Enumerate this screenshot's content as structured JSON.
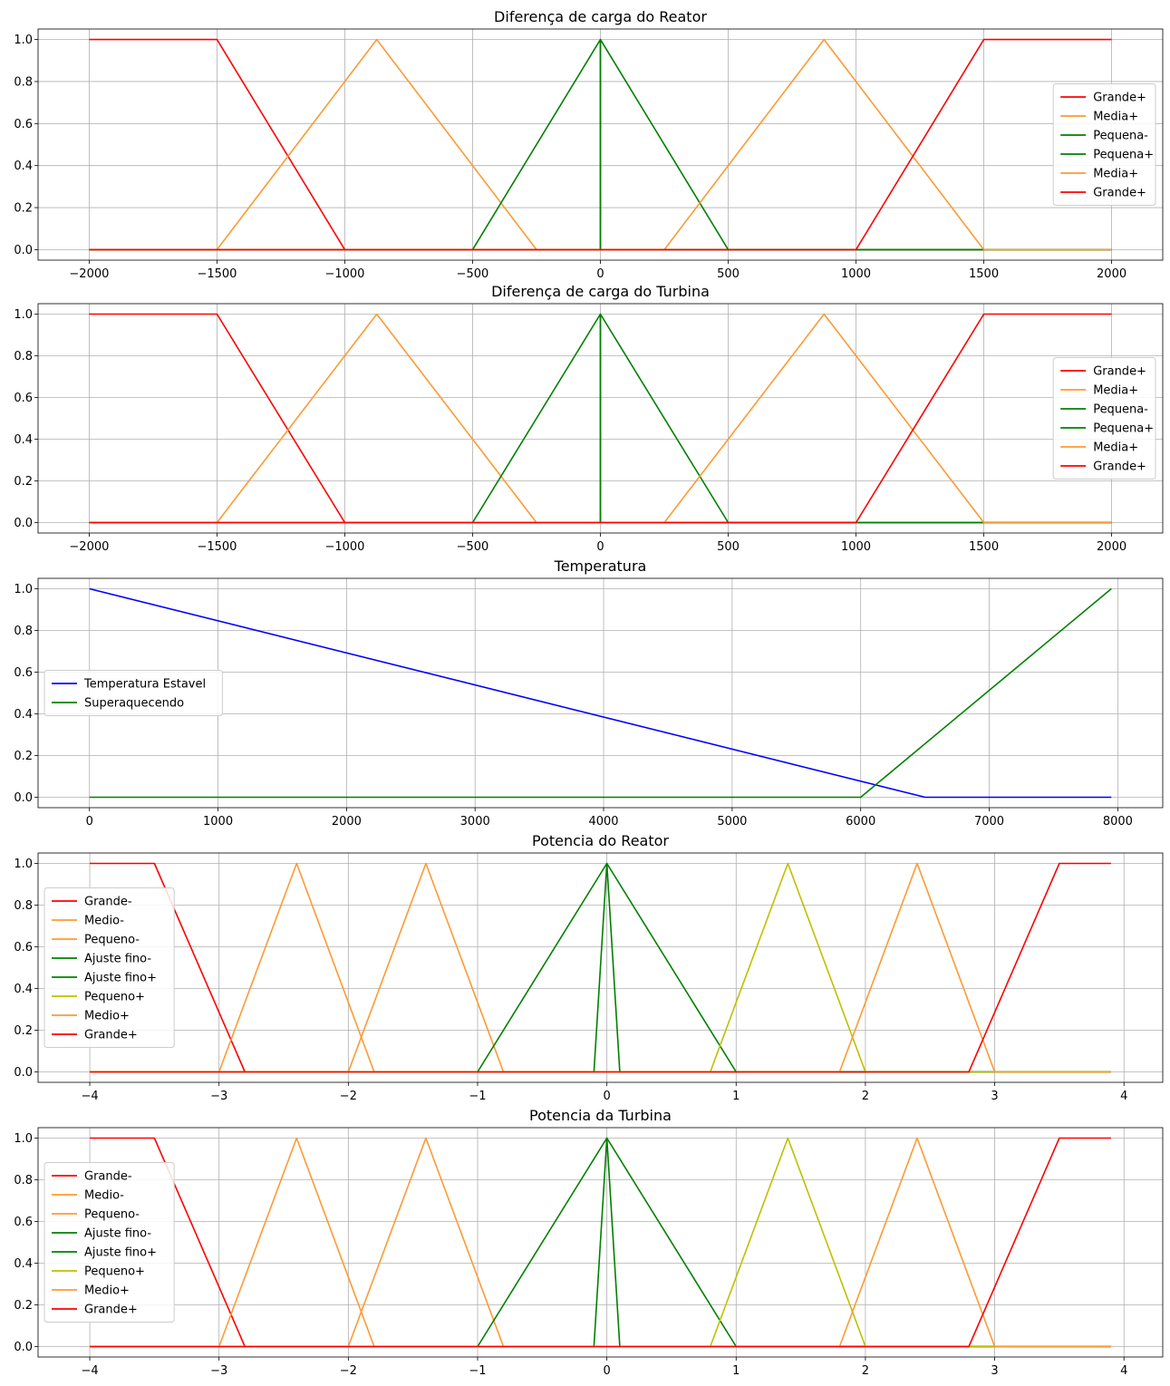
{
  "chart_data": [
    {
      "type": "line",
      "title": "Diferença de carga do Reator",
      "xlabel": "",
      "ylabel": "",
      "xlim": [
        -2200,
        2200
      ],
      "ylim": [
        -0.05,
        1.05
      ],
      "xticks": [
        -2000,
        -1500,
        -1000,
        -500,
        0,
        500,
        1000,
        1500,
        2000
      ],
      "xtick_labels": [
        "−2000",
        "−1500",
        "−1000",
        "−500",
        "0",
        "500",
        "1000",
        "1500",
        "2000"
      ],
      "yticks": [
        0.0,
        0.2,
        0.4,
        0.6,
        0.8,
        1.0
      ],
      "ytick_labels": [
        "0.0",
        "0.2",
        "0.4",
        "0.6",
        "0.8",
        "1.0"
      ],
      "grid": true,
      "legend_position": "right",
      "series": [
        {
          "name": "Grande+",
          "color": "#ff0000",
          "x": [
            -2000,
            -1500,
            -1000,
            2000
          ],
          "y": [
            1,
            1,
            0,
            0
          ]
        },
        {
          "name": "Media+",
          "color": "#ff9933",
          "x": [
            -2000,
            -1500,
            -875,
            -250,
            2000
          ],
          "y": [
            0,
            0,
            1,
            0,
            0
          ]
        },
        {
          "name": "Pequena-",
          "color": "#008000",
          "x": [
            -2000,
            -500,
            0,
            0,
            2000
          ],
          "y": [
            0,
            0,
            1,
            0,
            0
          ]
        },
        {
          "name": "Pequena+",
          "color": "#008000",
          "x": [
            -2000,
            0,
            0,
            500,
            2000
          ],
          "y": [
            0,
            0,
            1,
            0,
            0
          ]
        },
        {
          "name": "Media+",
          "color": "#ff9933",
          "x": [
            -2000,
            250,
            875,
            1500,
            2000
          ],
          "y": [
            0,
            0,
            1,
            0,
            0
          ]
        },
        {
          "name": "Grande+",
          "color": "#ff0000",
          "x": [
            -2000,
            1000,
            1500,
            2000
          ],
          "y": [
            0,
            0,
            1,
            1
          ]
        }
      ]
    },
    {
      "type": "line",
      "title": "Diferença de carga do Turbina",
      "xlabel": "",
      "ylabel": "",
      "xlim": [
        -2200,
        2200
      ],
      "ylim": [
        -0.05,
        1.05
      ],
      "xticks": [
        -2000,
        -1500,
        -1000,
        -500,
        0,
        500,
        1000,
        1500,
        2000
      ],
      "xtick_labels": [
        "−2000",
        "−1500",
        "−1000",
        "−500",
        "0",
        "500",
        "1000",
        "1500",
        "2000"
      ],
      "yticks": [
        0.0,
        0.2,
        0.4,
        0.6,
        0.8,
        1.0
      ],
      "ytick_labels": [
        "0.0",
        "0.2",
        "0.4",
        "0.6",
        "0.8",
        "1.0"
      ],
      "grid": true,
      "legend_position": "right",
      "series": [
        {
          "name": "Grande+",
          "color": "#ff0000",
          "x": [
            -2000,
            -1500,
            -1000,
            2000
          ],
          "y": [
            1,
            1,
            0,
            0
          ]
        },
        {
          "name": "Media+",
          "color": "#ff9933",
          "x": [
            -2000,
            -1500,
            -875,
            -250,
            2000
          ],
          "y": [
            0,
            0,
            1,
            0,
            0
          ]
        },
        {
          "name": "Pequena-",
          "color": "#008000",
          "x": [
            -2000,
            -500,
            0,
            0,
            2000
          ],
          "y": [
            0,
            0,
            1,
            0,
            0
          ]
        },
        {
          "name": "Pequena+",
          "color": "#008000",
          "x": [
            -2000,
            0,
            0,
            500,
            2000
          ],
          "y": [
            0,
            0,
            1,
            0,
            0
          ]
        },
        {
          "name": "Media+",
          "color": "#ff9933",
          "x": [
            -2000,
            250,
            875,
            1500,
            2000
          ],
          "y": [
            0,
            0,
            1,
            0,
            0
          ]
        },
        {
          "name": "Grande+",
          "color": "#ff0000",
          "x": [
            -2000,
            1000,
            1500,
            2000
          ],
          "y": [
            0,
            0,
            1,
            1
          ]
        }
      ]
    },
    {
      "type": "line",
      "title": "Temperatura",
      "xlabel": "",
      "ylabel": "",
      "xlim": [
        -400,
        8350
      ],
      "ylim": [
        -0.05,
        1.05
      ],
      "xticks": [
        0,
        1000,
        2000,
        3000,
        4000,
        5000,
        6000,
        7000,
        8000
      ],
      "xtick_labels": [
        "0",
        "1000",
        "2000",
        "3000",
        "4000",
        "5000",
        "6000",
        "7000",
        "8000"
      ],
      "yticks": [
        0.0,
        0.2,
        0.4,
        0.6,
        0.8,
        1.0
      ],
      "ytick_labels": [
        "0.0",
        "0.2",
        "0.4",
        "0.6",
        "0.8",
        "1.0"
      ],
      "grid": true,
      "legend_position": "center-left",
      "series": [
        {
          "name": "Temperatura Estavel",
          "color": "#0000ff",
          "x": [
            0,
            6500,
            7950
          ],
          "y": [
            1,
            0,
            0
          ]
        },
        {
          "name": "Superaquecendo",
          "color": "#008000",
          "x": [
            0,
            6000,
            7950
          ],
          "y": [
            0,
            0,
            1
          ]
        }
      ]
    },
    {
      "type": "line",
      "title": "Potencia do Reator",
      "xlabel": "",
      "ylabel": "",
      "xlim": [
        -4.4,
        4.3
      ],
      "ylim": [
        -0.05,
        1.05
      ],
      "xticks": [
        -4,
        -3,
        -2,
        -1,
        0,
        1,
        2,
        3,
        4
      ],
      "xtick_labels": [
        "−4",
        "−3",
        "−2",
        "−1",
        "0",
        "1",
        "2",
        "3",
        "4"
      ],
      "yticks": [
        0.0,
        0.2,
        0.4,
        0.6,
        0.8,
        1.0
      ],
      "ytick_labels": [
        "0.0",
        "0.2",
        "0.4",
        "0.6",
        "0.8",
        "1.0"
      ],
      "grid": true,
      "legend_position": "center-left",
      "series": [
        {
          "name": "Grande-",
          "color": "#ff0000",
          "x": [
            -4,
            -3.5,
            -2.8,
            3.9
          ],
          "y": [
            1,
            1,
            0,
            0
          ]
        },
        {
          "name": "Medio-",
          "color": "#ff9933",
          "x": [
            -4,
            -3,
            -2.4,
            -1.8,
            3.9
          ],
          "y": [
            0,
            0,
            1,
            0,
            0
          ]
        },
        {
          "name": "Pequeno-",
          "color": "#ff9933",
          "x": [
            -4,
            -2,
            -1.4,
            -0.8,
            3.9
          ],
          "y": [
            0,
            0,
            1,
            0,
            0
          ]
        },
        {
          "name": "Ajuste fino-",
          "color": "#008000",
          "x": [
            -4,
            -1,
            0,
            0.1,
            3.9
          ],
          "y": [
            0,
            0,
            1,
            0,
            0
          ]
        },
        {
          "name": "Ajuste fino+",
          "color": "#008000",
          "x": [
            -4,
            -0.1,
            0,
            1,
            3.9
          ],
          "y": [
            0,
            0,
            1,
            0,
            0
          ]
        },
        {
          "name": "Pequeno+",
          "color": "#bfbf00",
          "x": [
            -4,
            0.8,
            1.4,
            2,
            3.9
          ],
          "y": [
            0,
            0,
            1,
            0,
            0
          ]
        },
        {
          "name": "Medio+",
          "color": "#ff9933",
          "x": [
            -4,
            1.8,
            2.4,
            3,
            3.9
          ],
          "y": [
            0,
            0,
            1,
            0,
            0
          ]
        },
        {
          "name": "Grande+",
          "color": "#ff0000",
          "x": [
            -4,
            2.8,
            3.5,
            3.9
          ],
          "y": [
            0,
            0,
            1,
            1
          ]
        }
      ]
    },
    {
      "type": "line",
      "title": "Potencia da Turbina",
      "xlabel": "",
      "ylabel": "",
      "xlim": [
        -4.4,
        4.3
      ],
      "ylim": [
        -0.05,
        1.05
      ],
      "xticks": [
        -4,
        -3,
        -2,
        -1,
        0,
        1,
        2,
        3,
        4
      ],
      "xtick_labels": [
        "−4",
        "−3",
        "−2",
        "−1",
        "0",
        "1",
        "2",
        "3",
        "4"
      ],
      "yticks": [
        0.0,
        0.2,
        0.4,
        0.6,
        0.8,
        1.0
      ],
      "ytick_labels": [
        "0.0",
        "0.2",
        "0.4",
        "0.6",
        "0.8",
        "1.0"
      ],
      "grid": true,
      "legend_position": "center-left",
      "series": [
        {
          "name": "Grande-",
          "color": "#ff0000",
          "x": [
            -4,
            -3.5,
            -2.8,
            3.9
          ],
          "y": [
            1,
            1,
            0,
            0
          ]
        },
        {
          "name": "Medio-",
          "color": "#ff9933",
          "x": [
            -4,
            -3,
            -2.4,
            -1.8,
            3.9
          ],
          "y": [
            0,
            0,
            1,
            0,
            0
          ]
        },
        {
          "name": "Pequeno-",
          "color": "#ff9933",
          "x": [
            -4,
            -2,
            -1.4,
            -0.8,
            3.9
          ],
          "y": [
            0,
            0,
            1,
            0,
            0
          ]
        },
        {
          "name": "Ajuste fino-",
          "color": "#008000",
          "x": [
            -4,
            -1,
            0,
            0.1,
            3.9
          ],
          "y": [
            0,
            0,
            1,
            0,
            0
          ]
        },
        {
          "name": "Ajuste fino+",
          "color": "#008000",
          "x": [
            -4,
            -0.1,
            0,
            1,
            3.9
          ],
          "y": [
            0,
            0,
            1,
            0,
            0
          ]
        },
        {
          "name": "Pequeno+",
          "color": "#bfbf00",
          "x": [
            -4,
            0.8,
            1.4,
            2,
            3.9
          ],
          "y": [
            0,
            0,
            1,
            0,
            0
          ]
        },
        {
          "name": "Medio+",
          "color": "#ff9933",
          "x": [
            -4,
            1.8,
            2.4,
            3,
            3.9
          ],
          "y": [
            0,
            0,
            1,
            0,
            0
          ]
        },
        {
          "name": "Grande+",
          "color": "#ff0000",
          "x": [
            -4,
            2.8,
            3.5,
            3.9
          ],
          "y": [
            0,
            0,
            1,
            1
          ]
        }
      ]
    }
  ]
}
